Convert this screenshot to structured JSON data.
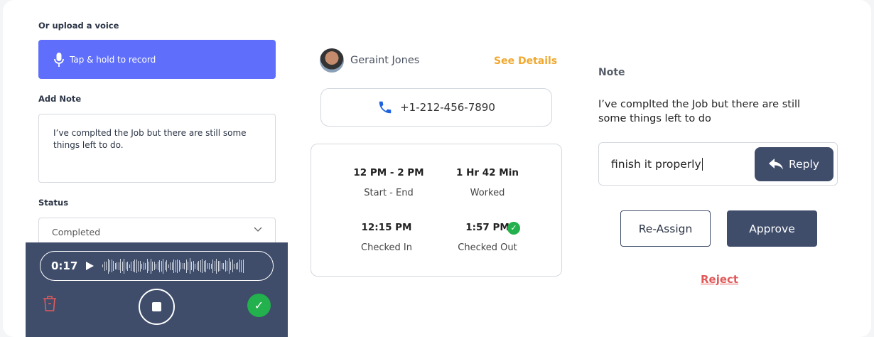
{
  "left": {
    "upload_label": "Or upload a voice",
    "record_label": "Tap & hold to record",
    "note_label": "Add Note",
    "note_value": "I’ve complted the Job but there are still some things left to do.",
    "status_label": "Status",
    "status_value": "Completed",
    "recorder": {
      "time": "0:17"
    }
  },
  "middle": {
    "name": "Geraint Jones",
    "see_details": "See Details",
    "phone": "+1-212-456-7890",
    "info": [
      {
        "value": "12 PM - 2 PM",
        "label": "Start - End"
      },
      {
        "value": "1 Hr 42 Min",
        "label": "Worked"
      },
      {
        "value": "12:15 PM",
        "label": "Checked In"
      },
      {
        "value": "1:57 PM",
        "label": "Checked Out"
      }
    ]
  },
  "right": {
    "note_label": "Note",
    "note_text": "I’ve complted the Job but there are still some things left to do",
    "reply_value": "finish it properly",
    "reply_button": "Reply",
    "reassign": "Re-Assign",
    "approve": "Approve",
    "reject": "Reject"
  },
  "colors": {
    "primary": "#5f6ffb",
    "dark": "#3f4d6b",
    "accent": "#f0a830",
    "success": "#22b14c",
    "danger": "#e05a5a"
  }
}
